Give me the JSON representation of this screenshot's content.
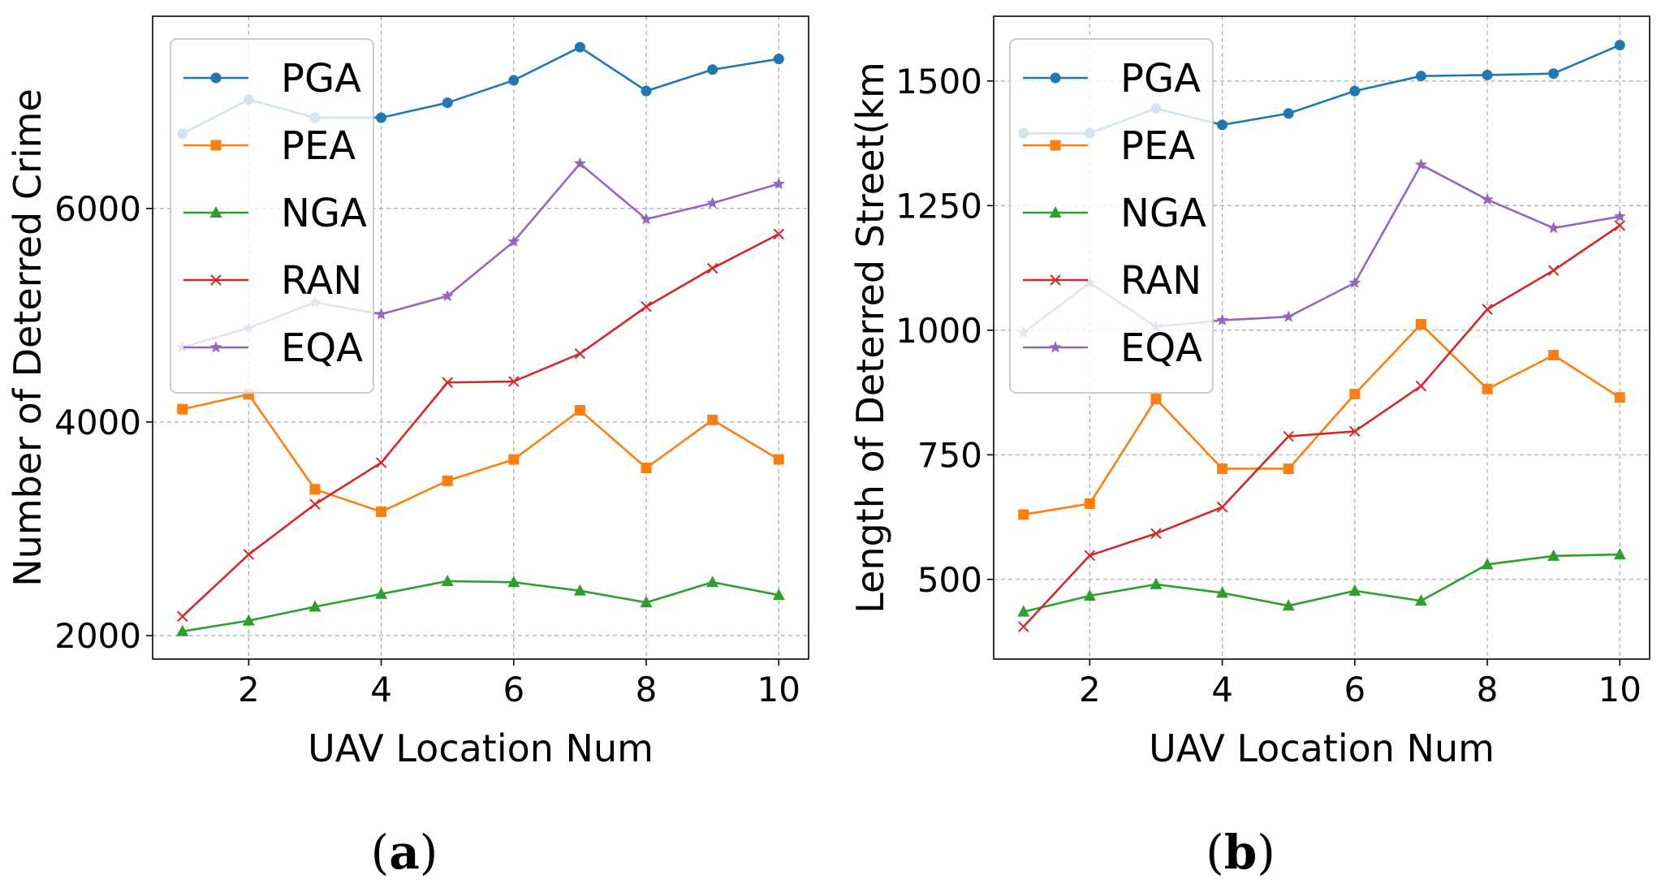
{
  "colors": {
    "PGA": "#1f77b4",
    "PEA": "#ff7f0e",
    "NGA": "#2ca02c",
    "RAN": "#d62728",
    "EQA": "#9467bd"
  },
  "markers": {
    "PGA": "circle",
    "PEA": "square",
    "NGA": "triangle",
    "RAN": "x",
    "EQA": "star"
  },
  "chart_data": [
    {
      "type": "line",
      "panel_label": "a",
      "xlabel": "UAV Location Num",
      "ylabel": "Number of Deterred Crime",
      "x": [
        1,
        2,
        3,
        4,
        5,
        6,
        7,
        8,
        9,
        10
      ],
      "xlim": [
        0.55,
        10.45
      ],
      "ylim": [
        1780,
        7800
      ],
      "xticks": [
        2,
        4,
        6,
        8,
        10
      ],
      "yticks": [
        2000,
        4000,
        6000
      ],
      "grid": true,
      "legend_position": "upper-left",
      "series": [
        {
          "name": "PGA",
          "values": [
            6700,
            7020,
            6850,
            6850,
            6990,
            7200,
            7510,
            7100,
            7300,
            7400
          ]
        },
        {
          "name": "PEA",
          "values": [
            4120,
            4260,
            3370,
            3160,
            3450,
            3650,
            4110,
            3570,
            4020,
            3650
          ]
        },
        {
          "name": "NGA",
          "values": [
            2040,
            2140,
            2270,
            2390,
            2510,
            2500,
            2420,
            2310,
            2500,
            2380
          ]
        },
        {
          "name": "RAN",
          "values": [
            2180,
            2760,
            3230,
            3620,
            4370,
            4380,
            4640,
            5080,
            5440,
            5760
          ]
        },
        {
          "name": "EQA",
          "values": [
            4700,
            4880,
            5120,
            5010,
            5180,
            5690,
            6420,
            5900,
            6050,
            6230
          ]
        }
      ]
    },
    {
      "type": "line",
      "panel_label": "b",
      "xlabel": "UAV Location Num",
      "ylabel": "Length of Deterred Street(km",
      "x": [
        1,
        2,
        3,
        4,
        5,
        6,
        7,
        8,
        9,
        10
      ],
      "xlim": [
        0.55,
        10.45
      ],
      "ylim": [
        340,
        1630
      ],
      "xticks": [
        2,
        4,
        6,
        8,
        10
      ],
      "yticks": [
        500,
        750,
        1000,
        1250,
        1500
      ],
      "grid": true,
      "legend_position": "upper-left",
      "series": [
        {
          "name": "PGA",
          "values": [
            1395,
            1395,
            1445,
            1412,
            1435,
            1480,
            1510,
            1512,
            1515,
            1572
          ]
        },
        {
          "name": "PEA",
          "values": [
            630,
            652,
            862,
            722,
            722,
            872,
            1012,
            882,
            950,
            865
          ]
        },
        {
          "name": "NGA",
          "values": [
            435,
            467,
            490,
            473,
            447,
            477,
            457,
            530,
            547,
            550
          ]
        },
        {
          "name": "RAN",
          "values": [
            405,
            548,
            592,
            645,
            787,
            797,
            888,
            1042,
            1120,
            1210
          ]
        },
        {
          "name": "EQA",
          "values": [
            995,
            1095,
            1007,
            1020,
            1027,
            1095,
            1332,
            1262,
            1205,
            1228
          ]
        }
      ]
    }
  ]
}
